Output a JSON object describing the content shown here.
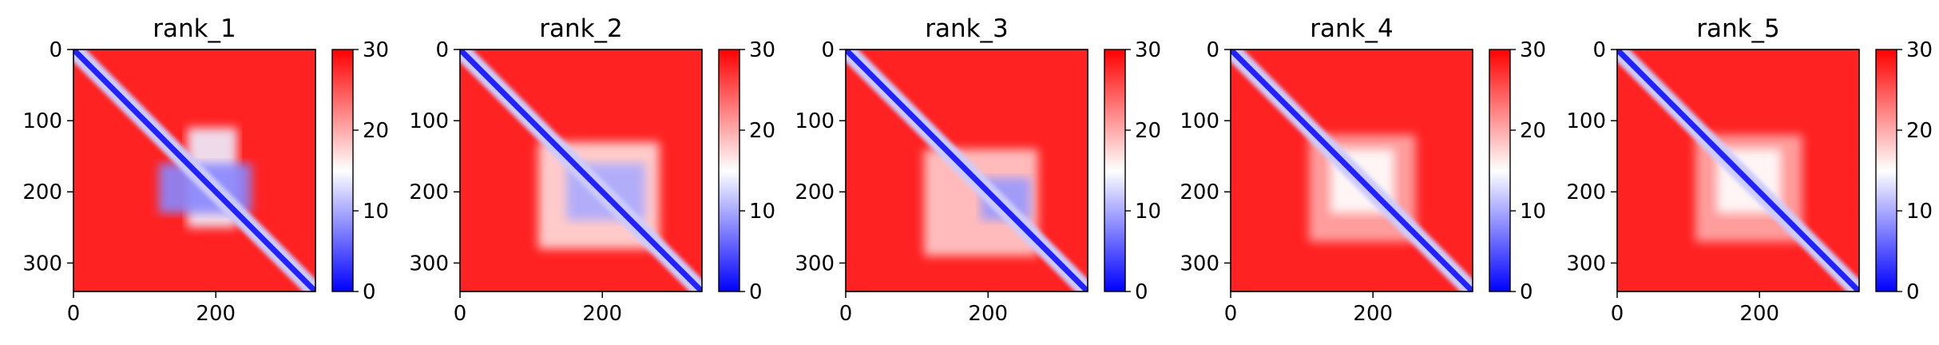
{
  "chart_data": [
    {
      "type": "heatmap",
      "title": "rank_1",
      "x": {
        "lim": [
          0,
          340
        ],
        "ticks": [
          0,
          200
        ]
      },
      "y": {
        "lim": [
          0,
          340
        ],
        "inverted": true,
        "ticks": [
          0,
          100,
          200,
          300
        ]
      },
      "colorbar": {
        "lim": [
          0,
          30
        ],
        "ticks": [
          0,
          10,
          20,
          30
        ],
        "colormap": [
          "#0000ff",
          "#ffffff",
          "#ff0000"
        ]
      },
      "blocks": [
        {
          "x0": 120,
          "x1": 250,
          "y0": 160,
          "y1": 230,
          "value": 8
        },
        {
          "x0": 160,
          "x1": 230,
          "y0": 110,
          "y1": 250,
          "value": 14
        }
      ],
      "diagonal_value": 2,
      "background_value": 28
    },
    {
      "type": "heatmap",
      "title": "rank_2",
      "x": {
        "lim": [
          0,
          340
        ],
        "ticks": [
          0,
          200
        ]
      },
      "y": {
        "lim": [
          0,
          340
        ],
        "inverted": true,
        "ticks": [
          0,
          100,
          200,
          300
        ]
      },
      "colorbar": {
        "lim": [
          0,
          30
        ],
        "ticks": [
          0,
          10,
          20,
          30
        ],
        "colormap": [
          "#0000ff",
          "#ffffff",
          "#ff0000"
        ]
      },
      "blocks": [
        {
          "x0": 150,
          "x1": 260,
          "y0": 160,
          "y1": 240,
          "value": 10
        },
        {
          "x0": 110,
          "x1": 280,
          "y0": 130,
          "y1": 280,
          "value": 17
        }
      ],
      "diagonal_value": 2,
      "background_value": 28
    },
    {
      "type": "heatmap",
      "title": "rank_3",
      "x": {
        "lim": [
          0,
          340
        ],
        "ticks": [
          0,
          200
        ]
      },
      "y": {
        "lim": [
          0,
          340
        ],
        "inverted": true,
        "ticks": [
          0,
          100,
          200,
          300
        ]
      },
      "colorbar": {
        "lim": [
          0,
          30
        ],
        "ticks": [
          0,
          10,
          20,
          30
        ],
        "colormap": [
          "#0000ff",
          "#ffffff",
          "#ff0000"
        ]
      },
      "blocks": [
        {
          "x0": 190,
          "x1": 260,
          "y0": 180,
          "y1": 240,
          "value": 9
        },
        {
          "x0": 110,
          "x1": 270,
          "y0": 140,
          "y1": 290,
          "value": 18
        }
      ],
      "diagonal_value": 2,
      "background_value": 28
    },
    {
      "type": "heatmap",
      "title": "rank_4",
      "x": {
        "lim": [
          0,
          340
        ],
        "ticks": [
          0,
          200
        ]
      },
      "y": {
        "lim": [
          0,
          340
        ],
        "inverted": true,
        "ticks": [
          0,
          100,
          200,
          300
        ]
      },
      "colorbar": {
        "lim": [
          0,
          30
        ],
        "ticks": [
          0,
          10,
          20,
          30
        ],
        "colormap": [
          "#0000ff",
          "#ffffff",
          "#ff0000"
        ]
      },
      "blocks": [
        {
          "x0": 140,
          "x1": 230,
          "y0": 140,
          "y1": 230,
          "value": 15
        },
        {
          "x0": 110,
          "x1": 260,
          "y0": 120,
          "y1": 270,
          "value": 20
        }
      ],
      "diagonal_value": 2,
      "background_value": 28
    },
    {
      "type": "heatmap",
      "title": "rank_5",
      "x": {
        "lim": [
          0,
          340
        ],
        "ticks": [
          0,
          200
        ]
      },
      "y": {
        "lim": [
          0,
          340
        ],
        "inverted": true,
        "ticks": [
          0,
          100,
          200,
          300
        ]
      },
      "colorbar": {
        "lim": [
          0,
          30
        ],
        "ticks": [
          0,
          10,
          20,
          30
        ],
        "colormap": [
          "#0000ff",
          "#ffffff",
          "#ff0000"
        ]
      },
      "blocks": [
        {
          "x0": 140,
          "x1": 230,
          "y0": 140,
          "y1": 230,
          "value": 15
        },
        {
          "x0": 110,
          "x1": 260,
          "y0": 120,
          "y1": 270,
          "value": 20
        }
      ],
      "diagonal_value": 2,
      "background_value": 28
    }
  ]
}
